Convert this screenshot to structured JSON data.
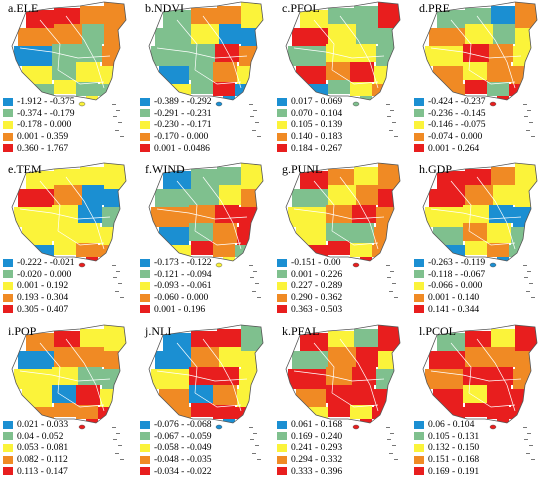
{
  "colors": [
    "#1b8fd2",
    "#7fc08e",
    "#fbf33a",
    "#f08a24",
    "#e81e1e"
  ],
  "panels": [
    {
      "title": "a.ELE",
      "legend": [
        "-1.912 - -0.375",
        "-0.374 - -0.179",
        "-0.178 - 0.000",
        "0.001 - 0.359",
        "0.360 - 1.767"
      ]
    },
    {
      "title": "b.NDVI",
      "legend": [
        "-0.389 - -0.292",
        "-0.291 - -0.231",
        "-0.230 - -0.171",
        "-0.170 - 0.000",
        "0.001 - 0.0486"
      ]
    },
    {
      "title": "c.PFOL",
      "legend": [
        "0.017 - 0.069",
        "0.070 - 0.104",
        "0.105 - 0.139",
        "0.140 - 0.183",
        "0.184 - 0.267"
      ]
    },
    {
      "title": "d.PRE",
      "legend": [
        "-0.424 - -0.237",
        "-0.236 - -0.145",
        "-0.146 - -0.075",
        "-0.074 - 0.000",
        "0.001 - 0.264"
      ]
    },
    {
      "title": "e.TEM",
      "legend": [
        "-0.222 - -0.021",
        "-0.020 - 0.000",
        "0.001 - 0.192",
        "0.193 - 0.304",
        "0.305 - 0.407"
      ]
    },
    {
      "title": "f.WIND",
      "legend": [
        "-0.173 - -0.122",
        "-0.121 - -0.094",
        "-0.093 - -0.061",
        "-0.060 - 0.000",
        "0.001 - 0.196"
      ]
    },
    {
      "title": "g.PUNL",
      "legend": [
        "-0.151 - 0.00",
        "0.001 - 0.226",
        "0.227 - 0.289",
        "0.290 - 0.362",
        "0.363 - 0.503"
      ]
    },
    {
      "title": "h.GDP",
      "legend": [
        "-0.263 - -0.119",
        "-0.118 - -0.067",
        "-0.066 - 0.000",
        "0.001 - 0.140",
        "0.141 - 0.344"
      ]
    },
    {
      "title": "i.POP",
      "legend": [
        "0.021 - 0.033",
        "0.04 - 0.052",
        "0.053 - 0.081",
        "0.082 - 0.112",
        "0.113 - 0.147"
      ]
    },
    {
      "title": "j.NLI",
      "legend": [
        "-0.076 - -0.068",
        "-0.067 - -0.059",
        "-0.058 - -0.049",
        "-0.048 - -0.035",
        "-0.034 - -0.022"
      ]
    },
    {
      "title": "k.PFAL",
      "legend": [
        "0.061 - 0.168",
        "0.169 - 0.240",
        "0.241 - 0.293",
        "0.294 - 0.332",
        "0.333 - 0.396"
      ]
    },
    {
      "title": "l.PCOL",
      "legend": [
        "0.06 - 0.104",
        "0.105 - 0.131",
        "0.132 - 0.150",
        "0.151 - 0.168",
        "0.169 - 0.191"
      ]
    }
  ],
  "patterns": [
    [
      4,
      4,
      3,
      3,
      3,
      3,
      1,
      3,
      0,
      1,
      1,
      3,
      2,
      1,
      2,
      2,
      1,
      2,
      1,
      1,
      2
    ],
    [
      1,
      3,
      3,
      2,
      1,
      2,
      0,
      0,
      1,
      1,
      4,
      3,
      0,
      1,
      3,
      2,
      2,
      1,
      4,
      0,
      0
    ],
    [
      2,
      1,
      1,
      4,
      4,
      2,
      1,
      1,
      1,
      2,
      2,
      1,
      4,
      3,
      4,
      2,
      0,
      1,
      2,
      3,
      1
    ],
    [
      1,
      1,
      0,
      3,
      3,
      2,
      1,
      2,
      2,
      4,
      3,
      2,
      3,
      2,
      3,
      3,
      3,
      4,
      1,
      4,
      4
    ],
    [
      2,
      2,
      2,
      2,
      4,
      3,
      0,
      0,
      2,
      2,
      0,
      1,
      2,
      2,
      2,
      2,
      0,
      2,
      3,
      3,
      4
    ],
    [
      0,
      1,
      1,
      2,
      1,
      1,
      2,
      3,
      3,
      3,
      4,
      4,
      0,
      1,
      3,
      4,
      2,
      4,
      3,
      1,
      2
    ],
    [
      4,
      3,
      2,
      3,
      1,
      2,
      3,
      4,
      2,
      3,
      4,
      3,
      2,
      1,
      1,
      3,
      4,
      4,
      2,
      3,
      4
    ],
    [
      4,
      4,
      3,
      2,
      4,
      3,
      2,
      2,
      2,
      2,
      0,
      0,
      1,
      3,
      2,
      1,
      0,
      2,
      3,
      1,
      0
    ],
    [
      3,
      4,
      2,
      2,
      0,
      3,
      3,
      3,
      2,
      2,
      1,
      1,
      2,
      0,
      4,
      2,
      3,
      3,
      3,
      4,
      4
    ],
    [
      0,
      4,
      4,
      1,
      0,
      3,
      2,
      2,
      2,
      4,
      4,
      2,
      3,
      0,
      3,
      2,
      3,
      4,
      4,
      4,
      0
    ],
    [
      4,
      2,
      1,
      4,
      1,
      3,
      4,
      2,
      4,
      3,
      4,
      1,
      3,
      4,
      4,
      4,
      2,
      4,
      2,
      4,
      4
    ],
    [
      1,
      4,
      2,
      4,
      4,
      3,
      3,
      3,
      3,
      4,
      4,
      3,
      4,
      2,
      4,
      4,
      4,
      4,
      4,
      4,
      4
    ]
  ]
}
